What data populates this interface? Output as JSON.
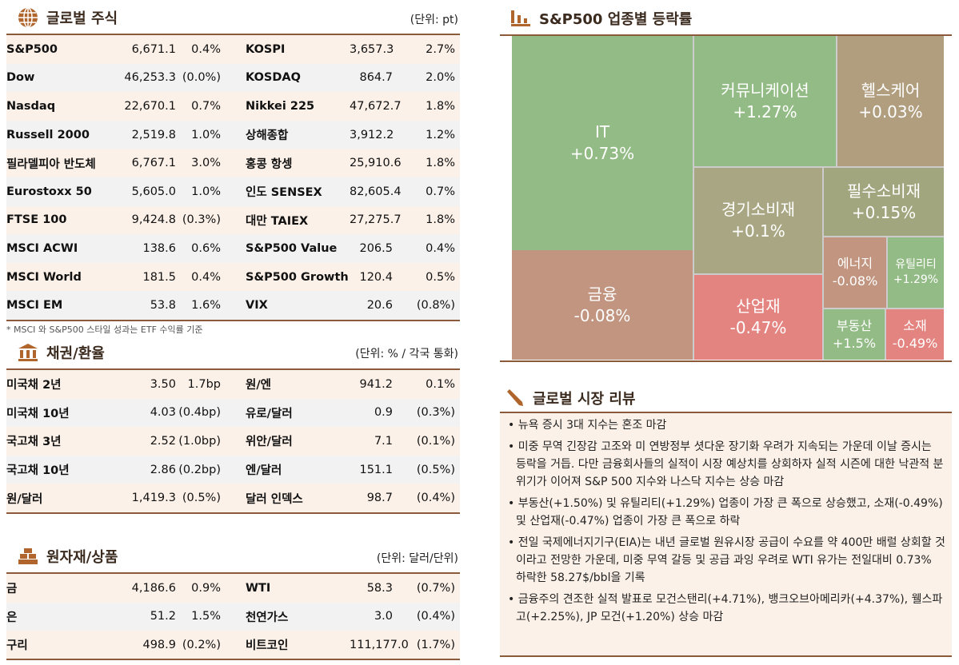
{
  "equity": {
    "title": "글로벌 주식",
    "unit": "(단위: pt)",
    "note": "* MSCI 와 S&P500 스타일 성과는 ETF 수익률 기준",
    "rows": [
      [
        "S&P500",
        "6,671.1",
        "0.4%",
        "KOSPI",
        "3,657.3",
        "2.7%"
      ],
      [
        "Dow",
        "46,253.3",
        "(0.0%)",
        "KOSDAQ",
        "864.7",
        "2.0%"
      ],
      [
        "Nasdaq",
        "22,670.1",
        "0.7%",
        "Nikkei 225",
        "47,672.7",
        "1.8%"
      ],
      [
        "Russell 2000",
        "2,519.8",
        "1.0%",
        "상해종합",
        "3,912.2",
        "1.2%"
      ],
      [
        "필라델피아 반도체",
        "6,767.1",
        "3.0%",
        "홍콩 항셍",
        "25,910.6",
        "1.8%"
      ],
      [
        "Eurostoxx 50",
        "5,605.0",
        "1.0%",
        "인도 SENSEX",
        "82,605.4",
        "0.7%"
      ],
      [
        "FTSE 100",
        "9,424.8",
        "(0.3%)",
        "대만 TAIEX",
        "27,275.7",
        "1.8%"
      ],
      [
        "MSCI ACWI",
        "138.6",
        "0.6%",
        "S&P500 Value",
        "206.5",
        "0.4%"
      ],
      [
        "MSCI World",
        "181.5",
        "0.4%",
        "S&P500 Growth",
        "120.4",
        "0.5%"
      ],
      [
        "MSCI EM",
        "53.8",
        "1.6%",
        "VIX",
        "20.6",
        "(0.8%)"
      ]
    ]
  },
  "bonds": {
    "title": "채권/환율",
    "unit": "(단위: % / 각국 통화)",
    "rows": [
      [
        "미국채 2년",
        "3.50",
        "1.7bp",
        "원/엔",
        "941.2",
        "0.1%"
      ],
      [
        "미국채 10년",
        "4.03",
        "(0.4bp)",
        "유로/달러",
        "0.9",
        "(0.3%)"
      ],
      [
        "국고채 3년",
        "2.52",
        "(1.0bp)",
        "위안/달러",
        "7.1",
        "(0.1%)"
      ],
      [
        "국고채 10년",
        "2.86",
        "(0.2bp)",
        "엔/달러",
        "151.1",
        "(0.5%)"
      ],
      [
        "원/달러",
        "1,419.3",
        "(0.5%)",
        "달러 인덱스",
        "98.7",
        "(0.4%)"
      ]
    ]
  },
  "commodities": {
    "title": "원자재/상품",
    "unit": "(단위: 달러/단위)",
    "rows": [
      [
        "금",
        "4,186.6",
        "0.9%",
        "WTI",
        "58.3",
        "(0.7%)"
      ],
      [
        "은",
        "51.2",
        "1.5%",
        "천연가스",
        "3.0",
        "(0.4%)"
      ],
      [
        "구리",
        "498.9",
        "(0.2%)",
        "비트코인",
        "111,177.0",
        "(1.7%)"
      ]
    ]
  },
  "sectors": {
    "title": "S&P500 업종별 등락률",
    "cells": [
      {
        "name": "IT",
        "value": "+0.73%",
        "color": "#93bb85"
      },
      {
        "name": "금융",
        "value": "-0.08%",
        "color": "#c1957f"
      },
      {
        "name": "커뮤니케이션",
        "value": "+1.27%",
        "color": "#93bb85"
      },
      {
        "name": "헬스케어",
        "value": "+0.03%",
        "color": "#b09e7f"
      },
      {
        "name": "경기소비재",
        "value": "+0.1%",
        "color": "#a9a783"
      },
      {
        "name": "필수소비재",
        "value": "+0.15%",
        "color": "#a2a67e"
      },
      {
        "name": "산업재",
        "value": "-0.47%",
        "color": "#e48480"
      },
      {
        "name": "에너지",
        "value": "-0.08%",
        "color": "#c1957f"
      },
      {
        "name": "유틸리티",
        "value": "+1.29%",
        "color": "#93bb85"
      },
      {
        "name": "부동산",
        "value": "+1.5%",
        "color": "#93bb85"
      },
      {
        "name": "소재",
        "value": "-0.49%",
        "color": "#e48480"
      }
    ]
  },
  "review": {
    "title": "글로벌 시장 리뷰",
    "items": [
      "뉴욕 증시 3대 지수는 혼조 마감",
      "미중 무역 긴장감 고조와 미 연방정부 셧다운 장기화 우려가 지속되는 가운데 이날 증시는 등락을 거듭. 다만 금융회사들의 실적이 시장 예상치를 상회하자 실적 시즌에 대한 낙관적 분위기가 이어져 S&P 500 지수와 나스닥 지수는 상승 마감",
      "부동산(+1.50%) 및 유틸리티(+1.29%) 업종이 가장 큰 폭으로 상승했고, 소재(-0.49%) 및 산업재(-0.47%) 업종이 가장 큰 폭으로 하락",
      "전일 국제에너지기구(EIA)는 내년 글로벌 원유시장 공급이 수요를 약 400만 배럴 상회할 것이라고 전망한 가운데, 미중 무역 갈등 및 공급 과잉 우려로 WTI 유가는 전일대비 0.73% 하락한 58.27$/bbl을 기록",
      "금융주의 견조한 실적 발표로 모건스탠리(+4.71%), 뱅크오브아메리카(+4.37%), 웰스파고(+2.25%), JP 모건(+1.20%) 상승 마감"
    ]
  }
}
